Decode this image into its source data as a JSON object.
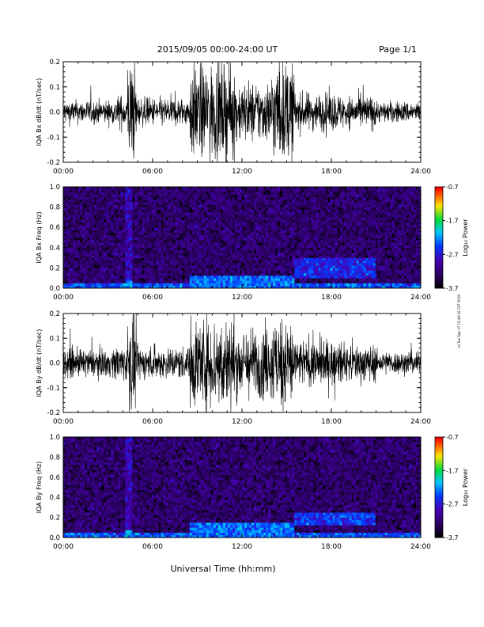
{
  "header": {
    "title": "2015/09/05  00:00-24:00 UT",
    "page": "Page 1/1"
  },
  "side_note": "rsl Tue Sep 17 15:49:10 CST 2019",
  "chart_data": [
    {
      "type": "line",
      "ylabel": "IQA Bx dB/dt (nT/sec)",
      "ylim": [
        -0.2,
        0.2
      ],
      "yticks": [
        "-0.2",
        "-0.1",
        "0.0",
        "0.1",
        "0.2"
      ],
      "xlim": [
        "00:00",
        "24:00"
      ],
      "xticks": [
        "00:00",
        "06:00",
        "12:00",
        "18:00",
        "24:00"
      ],
      "activity_segments": [
        {
          "start": 0.0,
          "end": 3.5,
          "amplitude": 0.05
        },
        {
          "start": 3.5,
          "end": 4.3,
          "amplitude": 0.07
        },
        {
          "start": 4.3,
          "end": 4.9,
          "amplitude": 0.22
        },
        {
          "start": 4.9,
          "end": 8.5,
          "amplitude": 0.06
        },
        {
          "start": 8.5,
          "end": 11.5,
          "amplitude": 0.2
        },
        {
          "start": 11.5,
          "end": 14.0,
          "amplitude": 0.13
        },
        {
          "start": 14.0,
          "end": 15.5,
          "amplitude": 0.21
        },
        {
          "start": 15.5,
          "end": 18.5,
          "amplitude": 0.08
        },
        {
          "start": 18.5,
          "end": 21.0,
          "amplitude": 0.07
        },
        {
          "start": 21.0,
          "end": 24.0,
          "amplitude": 0.045
        }
      ]
    },
    {
      "type": "heatmap",
      "ylabel": "IQA Bx Freq (Hz)",
      "ylim": [
        0.0,
        1.0
      ],
      "yticks": [
        "0.0",
        "0.2",
        "0.4",
        "0.6",
        "0.8",
        "1.0"
      ],
      "xlim": [
        "00:00",
        "24:00"
      ],
      "xticks": [
        "00:00",
        "06:00",
        "12:00",
        "18:00",
        "24:00"
      ],
      "colorbar": {
        "label": "Log₁₀ Power",
        "range": [
          -3.7,
          -0.7
        ],
        "ticks": [
          "-0.7",
          "-1.7",
          "-2.7",
          "-3.7"
        ]
      },
      "features": [
        {
          "type": "background",
          "freq_range": [
            0.0,
            1.0
          ],
          "log_power": -3.3
        },
        {
          "type": "low_freq_band",
          "time_range": [
            0,
            24
          ],
          "freq_range": [
            0.0,
            0.05
          ],
          "log_power": -2.4
        },
        {
          "type": "vertical_burst",
          "time": 4.4,
          "freq_range": [
            0.0,
            1.0
          ],
          "log_power": -2.2
        },
        {
          "type": "enhancement",
          "time_range": [
            8.5,
            15.5
          ],
          "freq_range": [
            0.0,
            0.12
          ],
          "log_power": -2.3
        },
        {
          "type": "band",
          "time_range": [
            15.5,
            21.0
          ],
          "freq_range": [
            0.1,
            0.3
          ],
          "log_power": -2.6
        }
      ]
    },
    {
      "type": "line",
      "ylabel": "IQA By dB/dt (nT/sec)",
      "ylim": [
        -0.2,
        0.2
      ],
      "yticks": [
        "-0.2",
        "-0.1",
        "0.0",
        "0.1",
        "0.2"
      ],
      "xlim": [
        "00:00",
        "24:00"
      ],
      "xticks": [
        "00:00",
        "06:00",
        "12:00",
        "18:00",
        "24:00"
      ],
      "activity_segments": [
        {
          "start": 0.0,
          "end": 3.5,
          "amplitude": 0.06
        },
        {
          "start": 3.5,
          "end": 4.3,
          "amplitude": 0.08
        },
        {
          "start": 4.3,
          "end": 4.9,
          "amplitude": 0.22
        },
        {
          "start": 4.9,
          "end": 8.5,
          "amplitude": 0.07
        },
        {
          "start": 8.5,
          "end": 11.5,
          "amplitude": 0.2
        },
        {
          "start": 11.5,
          "end": 14.0,
          "amplitude": 0.15
        },
        {
          "start": 14.0,
          "end": 15.5,
          "amplitude": 0.2
        },
        {
          "start": 15.5,
          "end": 18.5,
          "amplitude": 0.1
        },
        {
          "start": 18.5,
          "end": 21.0,
          "amplitude": 0.08
        },
        {
          "start": 21.0,
          "end": 24.0,
          "amplitude": 0.05
        }
      ]
    },
    {
      "type": "heatmap",
      "ylabel": "IQA By Freq (Hz)",
      "ylim": [
        0.0,
        1.0
      ],
      "yticks": [
        "0.0",
        "0.2",
        "0.4",
        "0.6",
        "0.8",
        "1.0"
      ],
      "xlim": [
        "00:00",
        "24:00"
      ],
      "xticks": [
        "00:00",
        "06:00",
        "12:00",
        "18:00",
        "24:00"
      ],
      "xlabel": "Universal Time (hh:mm)",
      "colorbar": {
        "label": "Log₁₀ Power",
        "range": [
          -3.7,
          -0.7
        ],
        "ticks": [
          "-0.7",
          "-1.7",
          "-2.7",
          "-3.7"
        ]
      },
      "features": [
        {
          "type": "background",
          "freq_range": [
            0.0,
            1.0
          ],
          "log_power": -3.3
        },
        {
          "type": "low_freq_band",
          "time_range": [
            0,
            24
          ],
          "freq_range": [
            0.0,
            0.06
          ],
          "log_power": -2.4
        },
        {
          "type": "vertical_burst",
          "time": 4.4,
          "freq_range": [
            0.0,
            1.0
          ],
          "log_power": -2.2
        },
        {
          "type": "enhancement",
          "time_range": [
            8.5,
            15.5
          ],
          "freq_range": [
            0.0,
            0.15
          ],
          "log_power": -2.3
        },
        {
          "type": "band",
          "time_range": [
            15.5,
            21.0
          ],
          "freq_range": [
            0.12,
            0.25
          ],
          "log_power": -2.5
        }
      ]
    }
  ]
}
